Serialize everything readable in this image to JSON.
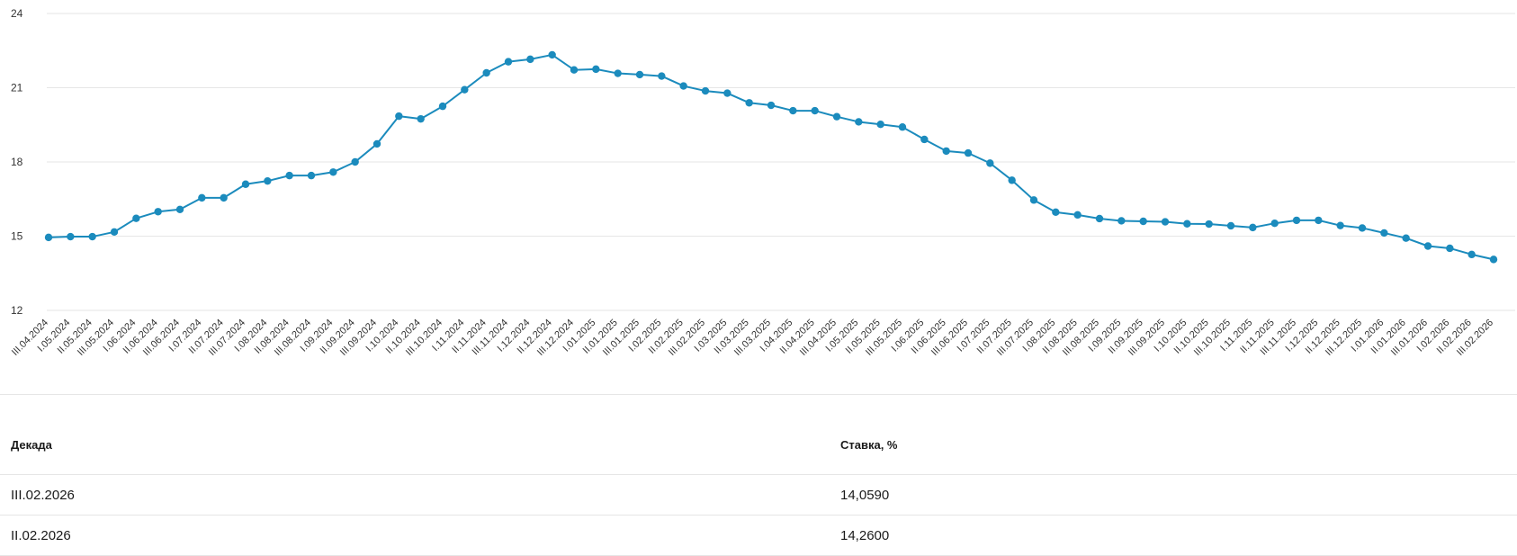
{
  "chart_data": {
    "type": "line",
    "x": [
      "III.04.2024",
      "I.05.2024",
      "II.05.2024",
      "III.05.2024",
      "I.06.2024",
      "II.06.2024",
      "III.06.2024",
      "I.07.2024",
      "II.07.2024",
      "III.07.2024",
      "I.08.2024",
      "II.08.2024",
      "III.08.2024",
      "I.09.2024",
      "II.09.2024",
      "III.09.2024",
      "I.10.2024",
      "II.10.2024",
      "III.10.2024",
      "I.11.2024",
      "II.11.2024",
      "III.11.2024",
      "I.12.2024",
      "II.12.2024",
      "III.12.2024",
      "I.01.2025",
      "II.01.2025",
      "III.01.2025",
      "I.02.2025",
      "II.02.2025",
      "III.02.2025",
      "I.03.2025",
      "II.03.2025",
      "III.03.2025",
      "I.04.2025",
      "II.04.2025",
      "III.04.2025",
      "I.05.2025",
      "II.05.2025",
      "III.05.2025",
      "I.06.2025",
      "II.06.2025",
      "III.06.2025",
      "I.07.2025",
      "II.07.2025",
      "III.07.2025",
      "I.08.2025",
      "II.08.2025",
      "III.08.2025",
      "I.09.2025",
      "II.09.2025",
      "III.09.2025",
      "I.10.2025",
      "II.10.2025",
      "III.10.2025",
      "I.11.2025",
      "II.11.2025",
      "III.11.2025",
      "I.12.2025",
      "II.12.2025",
      "III.12.2025",
      "I.01.2026",
      "II.01.2026",
      "III.01.2026",
      "I.02.2026",
      "II.02.2026",
      "III.02.2026"
    ],
    "series": [
      {
        "color": "#1b8bbd",
        "values": [
          14.95,
          14.98,
          14.98,
          15.17,
          15.72,
          15.99,
          16.08,
          16.55,
          16.55,
          17.1,
          17.23,
          17.45,
          17.45,
          17.59,
          18.0,
          18.73,
          19.85,
          19.74,
          20.25,
          20.92,
          21.6,
          22.05,
          22.15,
          22.33,
          21.72,
          21.75,
          21.58,
          21.53,
          21.47,
          21.07,
          20.87,
          20.78,
          20.39,
          20.29,
          20.07,
          20.07,
          19.83,
          19.62,
          19.52,
          19.41,
          18.91,
          18.44,
          18.36,
          17.95,
          17.26,
          16.46,
          15.97,
          15.86,
          15.71,
          15.62,
          15.6,
          15.58,
          15.5,
          15.49,
          15.42,
          15.35,
          15.52,
          15.64,
          15.64,
          15.43,
          15.33,
          15.13,
          14.92,
          14.6,
          14.51,
          14.26,
          14.059
        ]
      }
    ],
    "ylim": [
      12,
      24
    ],
    "yticks": [
      "24",
      "21",
      "18",
      "15",
      "12"
    ],
    "grid": true
  },
  "table": {
    "headers": [
      "Декада",
      "Ставка, %"
    ],
    "rows": [
      [
        "III.02.2026",
        "14,0590"
      ],
      [
        "II.02.2026",
        "14,2600"
      ]
    ]
  }
}
